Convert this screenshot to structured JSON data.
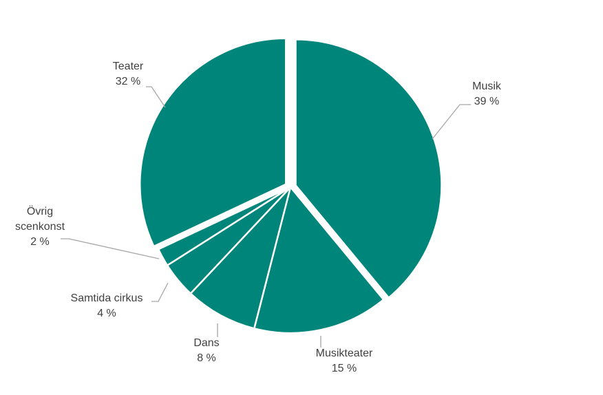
{
  "chart_data": {
    "type": "pie",
    "categories": [
      "Musik",
      "Musikteater",
      "Dans",
      "Samtida cirkus",
      "Övrig scenkonst",
      "Teater"
    ],
    "values": [
      39,
      15,
      8,
      4,
      2,
      32
    ],
    "value_labels": [
      "39 %",
      "15 %",
      "8 %",
      "4 %",
      "2 %",
      "32 %"
    ],
    "color": "#00857a"
  }
}
